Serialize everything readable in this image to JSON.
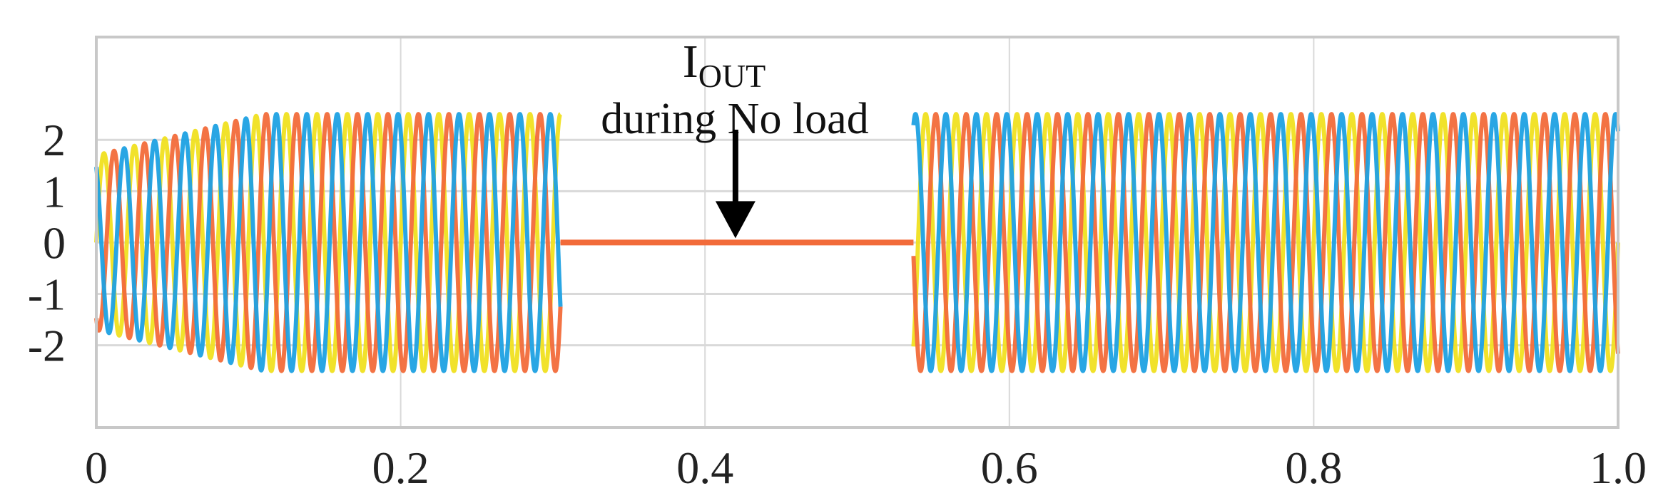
{
  "chart_data": {
    "type": "line",
    "title": "",
    "xlabel": "",
    "ylabel": "",
    "xlim": [
      0,
      1.0
    ],
    "ylim": [
      -3.6,
      4.0
    ],
    "grid": true,
    "x_ticks": [
      {
        "value": 0,
        "label": "0"
      },
      {
        "value": 0.2,
        "label": "0.2"
      },
      {
        "value": 0.4,
        "label": "0.4"
      },
      {
        "value": 0.6,
        "label": "0.6"
      },
      {
        "value": 0.8,
        "label": "0.8"
      },
      {
        "value": 1.0,
        "label": "1.0"
      }
    ],
    "y_ticks": [
      {
        "value": 2,
        "label": "2"
      },
      {
        "value": 1,
        "label": "1"
      },
      {
        "value": 0,
        "label": "0"
      },
      {
        "value": -1,
        "label": "-1"
      },
      {
        "value": -2,
        "label": "-2"
      }
    ],
    "signal": {
      "frequency_hz": 50,
      "steady_amplitude": 2.5,
      "initial_amplitude": 1.7,
      "ramp_end_time": 0.11,
      "no_load_interval": [
        0.305,
        0.537
      ],
      "no_load_value": 0
    },
    "series": [
      {
        "color": "#f0e020",
        "phase_deg": 0
      },
      {
        "color": "#f26b3a",
        "phase_deg": -120
      },
      {
        "color": "#1ea1e3",
        "phase_deg": 120
      }
    ],
    "annotation": {
      "main": "I",
      "subscript": "OUT",
      "line2": "during No load",
      "arrow_target_x": 0.42,
      "arrow_target_y": 0
    }
  }
}
